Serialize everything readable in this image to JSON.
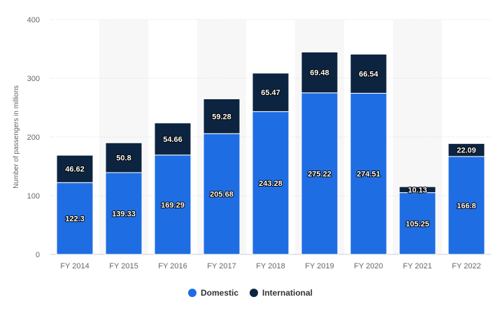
{
  "chart_data": {
    "type": "bar",
    "stacked": true,
    "categories": [
      "FY 2014",
      "FY 2015",
      "FY 2016",
      "FY 2017",
      "FY 2018",
      "FY 2019",
      "FY 2020",
      "FY 2021",
      "FY 2022"
    ],
    "series": [
      {
        "name": "Domestic",
        "color": "#1f6de3",
        "values": [
          122.3,
          139.33,
          169.29,
          205.68,
          243.28,
          275.22,
          274.51,
          105.25,
          166.8
        ]
      },
      {
        "name": "International",
        "color": "#0d2440",
        "values": [
          46.62,
          50.8,
          54.66,
          59.28,
          65.47,
          69.48,
          66.54,
          10.13,
          22.09
        ]
      }
    ],
    "ylabel": "Number of passengers in millions",
    "ylim": [
      0,
      400
    ],
    "yticks": [
      0,
      100,
      200,
      300,
      400
    ],
    "grid": true,
    "legend_position": "bottom"
  }
}
